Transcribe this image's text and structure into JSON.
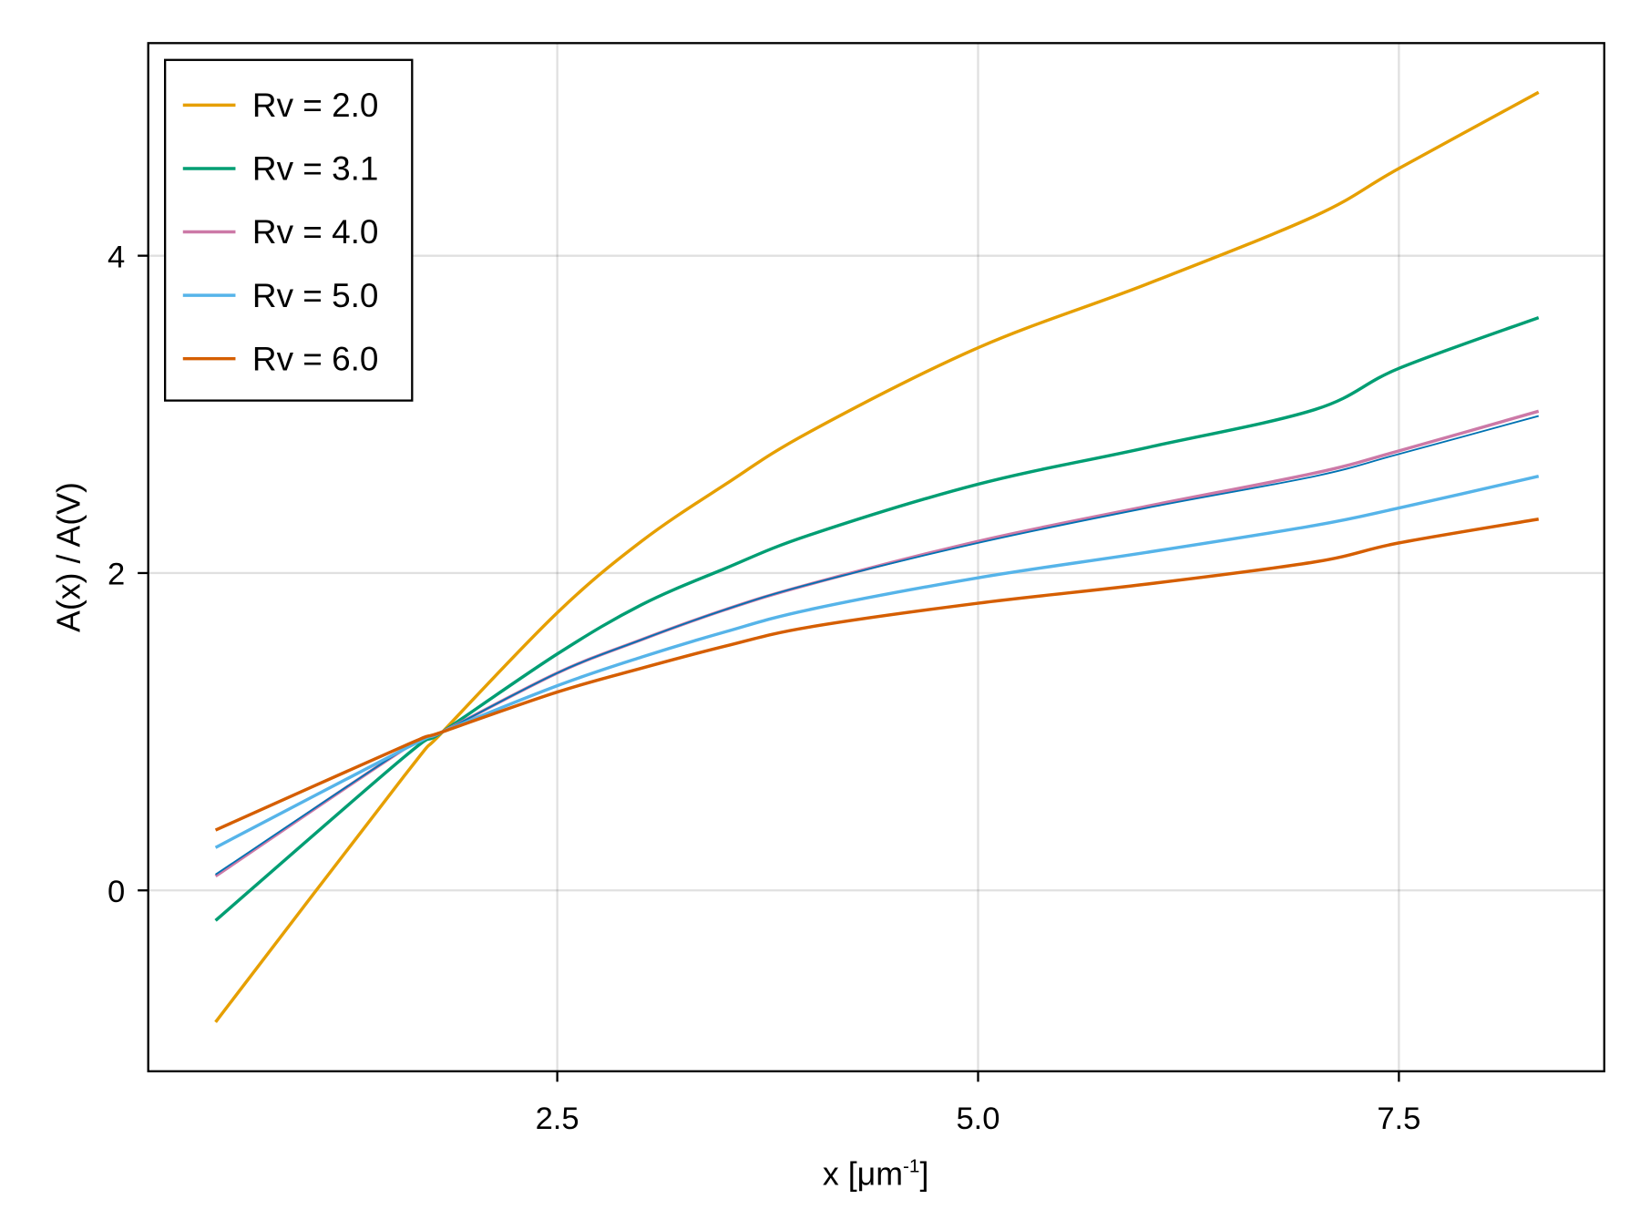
{
  "chart_data": {
    "type": "line",
    "title": "",
    "xlabel": "x [μm",
    "xlabel_sup": "-1",
    "xlabel_end": "]",
    "ylabel": "A(x) / A(V)",
    "xlim": [
      0.07,
      8.72
    ],
    "ylim": [
      -1.14,
      5.34
    ],
    "xticks": [
      2.5,
      5.0,
      7.5
    ],
    "xtick_labels": [
      "2.5",
      "5.0",
      "7.5"
    ],
    "yticks": [
      0,
      2,
      4
    ],
    "ytick_labels": [
      "0",
      "2",
      "4"
    ],
    "grid": true,
    "legend_position": "top-left",
    "x": [
      0.47,
      1.59,
      1.82,
      2.5,
      3.0,
      3.5,
      4.0,
      5.0,
      6.0,
      7.0,
      7.5,
      8.33
    ],
    "series": [
      {
        "name": "Rv = 2.0",
        "color": "#E69F00",
        "values": [
          -0.83,
          0.72,
          1.0,
          1.75,
          2.2,
          2.56,
          2.89,
          3.42,
          3.82,
          4.25,
          4.55,
          5.03
        ]
      },
      {
        "name": "Rv = 3.1",
        "color": "#009E73",
        "values": [
          -0.19,
          0.84,
          1.0,
          1.49,
          1.8,
          2.03,
          2.24,
          2.56,
          2.79,
          3.03,
          3.29,
          3.61
        ]
      },
      {
        "color": "#0072B2",
        "values": [
          0.1,
          0.89,
          1.0,
          1.37,
          1.58,
          1.77,
          1.93,
          2.19,
          2.41,
          2.61,
          2.75,
          2.99
        ]
      },
      {
        "name": "Rv = 4.0",
        "color": "#CC79A7",
        "values": [
          0.09,
          0.89,
          1.0,
          1.37,
          1.58,
          1.77,
          1.93,
          2.2,
          2.42,
          2.63,
          2.77,
          3.02
        ]
      },
      {
        "name": "Rv = 5.0",
        "color": "#56B4E9",
        "values": [
          0.27,
          0.89,
          1.0,
          1.29,
          1.47,
          1.63,
          1.77,
          1.97,
          2.13,
          2.3,
          2.41,
          2.61
        ]
      },
      {
        "name": "Rv = 6.0",
        "color": "#D55E00",
        "values": [
          0.38,
          0.91,
          1.0,
          1.25,
          1.4,
          1.54,
          1.66,
          1.81,
          1.93,
          2.07,
          2.19,
          2.34
        ]
      }
    ]
  }
}
